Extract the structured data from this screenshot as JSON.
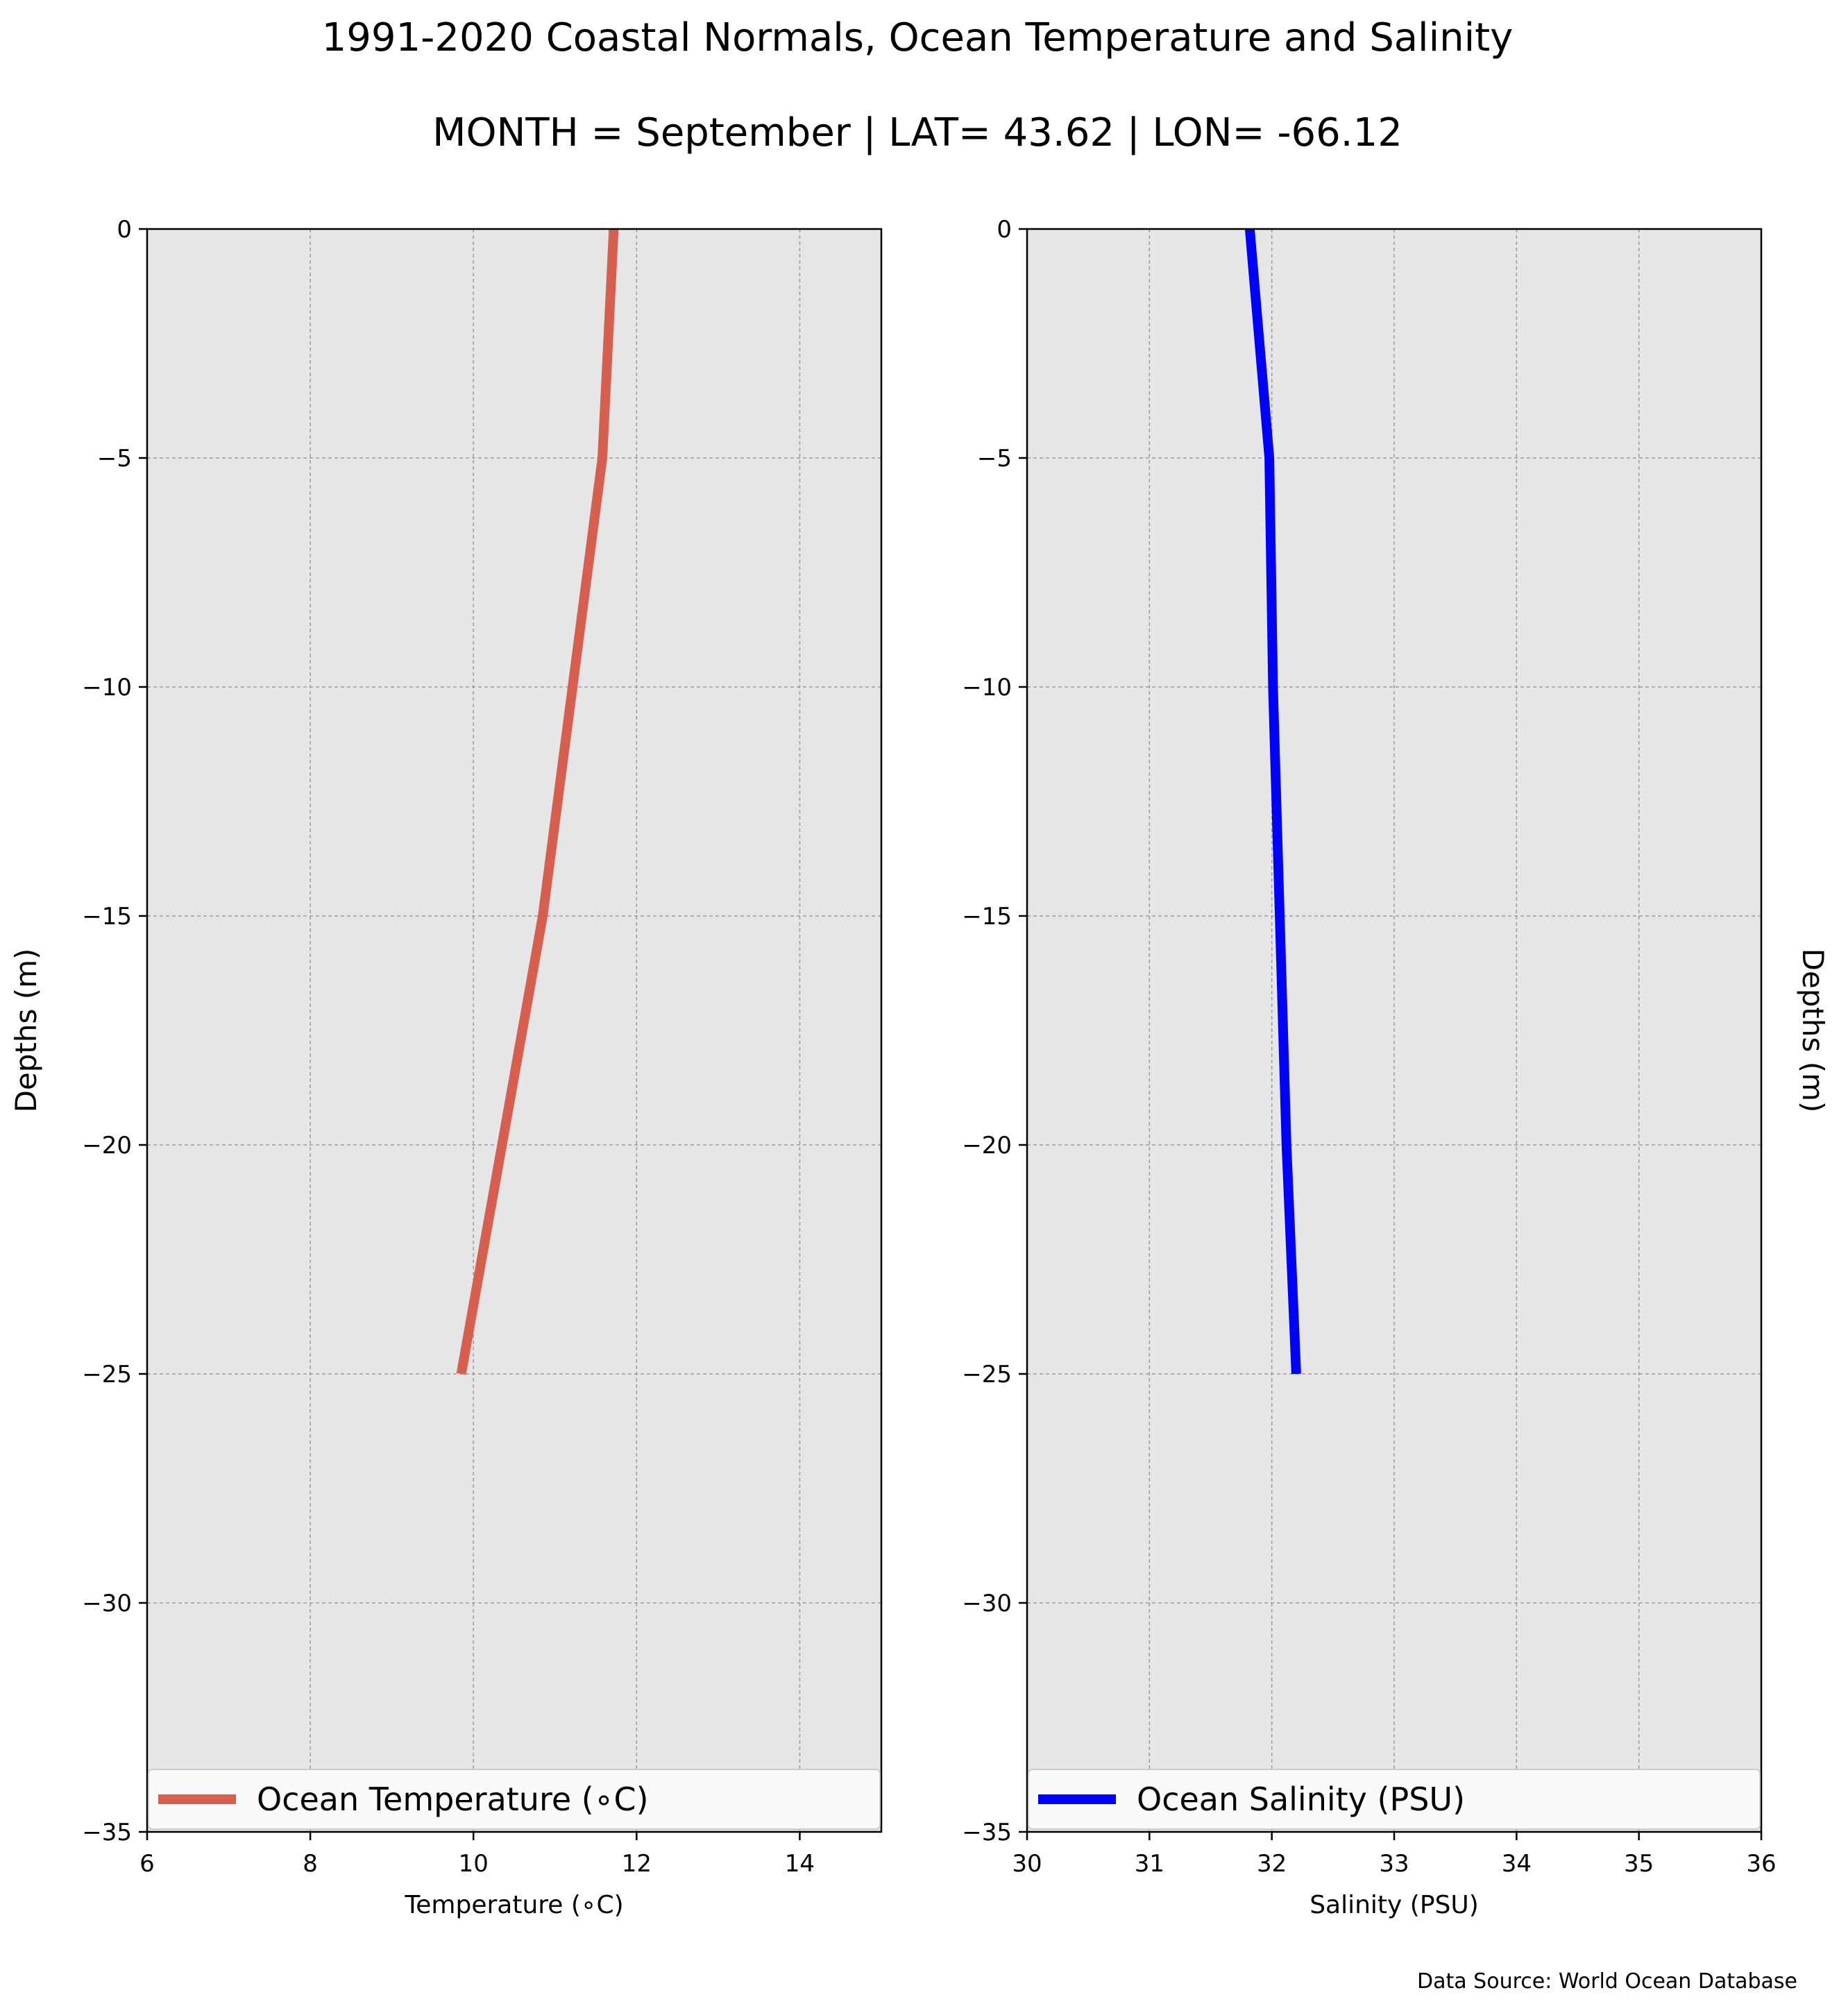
{
  "figure": {
    "title": "1991-2020 Coastal Normals, Ocean Temperature and Salinity",
    "subtitle": "MONTH = September | LAT= 43.62 | LON= -66.12",
    "source": "Data Source: World Ocean Database"
  },
  "chart_data": [
    {
      "type": "line",
      "xlabel": "Temperature (∘C)",
      "ylabel": "Depths (m)",
      "xlim": [
        6,
        15
      ],
      "ylim": [
        -35,
        0
      ],
      "xticks": [
        6,
        8,
        10,
        12,
        14
      ],
      "xtick_labels": [
        "6",
        "8",
        "10",
        "12",
        "14"
      ],
      "yticks": [
        0,
        -5,
        -10,
        -15,
        -20,
        -25,
        -30,
        -35
      ],
      "ytick_labels": [
        "0",
        "−5",
        "−10",
        "−15",
        "−20",
        "−25",
        "−30",
        "−35"
      ],
      "grid": true,
      "legend": "lower center",
      "series": [
        {
          "name": "Ocean Temperature (∘C)",
          "color": "#d65f4f",
          "x": [
            11.72,
            11.58,
            10.85,
            10.35,
            9.85
          ],
          "y": [
            0,
            -5,
            -15,
            -20,
            -25
          ]
        }
      ]
    },
    {
      "type": "line",
      "xlabel": "Salinity (PSU)",
      "ylabel": "Depths (m)",
      "xlim": [
        30,
        36
      ],
      "ylim": [
        -35,
        0
      ],
      "xticks": [
        30,
        31,
        32,
        33,
        34,
        35,
        36
      ],
      "xtick_labels": [
        "30",
        "31",
        "32",
        "33",
        "34",
        "35",
        "36"
      ],
      "yticks": [
        0,
        -5,
        -10,
        -15,
        -20,
        -25,
        -30,
        -35
      ],
      "ytick_labels": [
        "0",
        "−5",
        "−10",
        "−15",
        "−20",
        "−25",
        "−30",
        "−35"
      ],
      "grid": true,
      "legend": "lower center",
      "series": [
        {
          "name": "Ocean Salinity (PSU)",
          "color": "#0000ff",
          "x": [
            31.82,
            31.98,
            32.01,
            32.12,
            32.2
          ],
          "y": [
            0,
            -5,
            -10,
            -20,
            -25
          ]
        }
      ]
    }
  ]
}
